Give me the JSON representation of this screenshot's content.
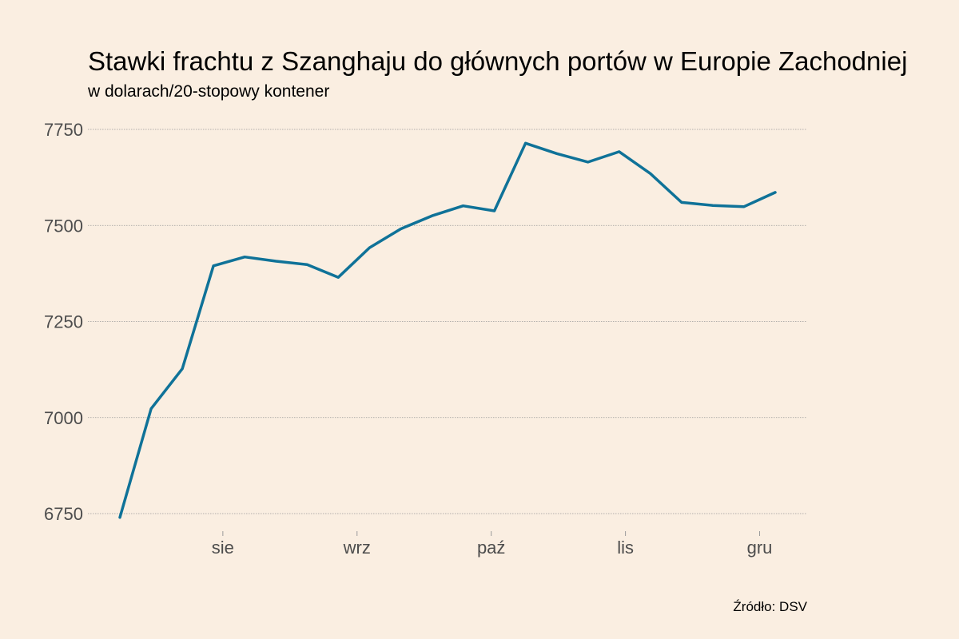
{
  "chart_data": {
    "type": "line",
    "title": "Stawki frachtu z Szanghaju do głównych portów w Europie Zachodniej",
    "subtitle": "w dolarach/20-stopowy kontener",
    "source": "Źródło: DSV",
    "xlabel": "",
    "ylabel": "",
    "ylim": [
      6750,
      7750
    ],
    "y_ticks": [
      6750,
      7000,
      7250,
      7500,
      7750
    ],
    "x_ticks": [
      {
        "label": "sie",
        "at": 3.3
      },
      {
        "label": "wrz",
        "at": 7.6
      },
      {
        "label": "paź",
        "at": 11.9
      },
      {
        "label": "lis",
        "at": 16.2
      },
      {
        "label": "gru",
        "at": 20.5
      }
    ],
    "grid": true,
    "legend": "none",
    "color": "#0F7298",
    "series": [
      {
        "x": [
          0,
          1,
          2,
          3,
          4,
          5,
          6,
          7,
          8,
          9,
          10,
          11,
          12,
          13,
          14,
          15,
          16,
          17,
          18,
          19,
          20,
          21
        ],
        "values": [
          6740,
          7023,
          7127,
          7395,
          7418,
          7407,
          7398,
          7365,
          7442,
          7491,
          7525,
          7551,
          7538,
          7714,
          7687,
          7665,
          7692,
          7635,
          7560,
          7552,
          7549,
          7586
        ]
      }
    ]
  }
}
